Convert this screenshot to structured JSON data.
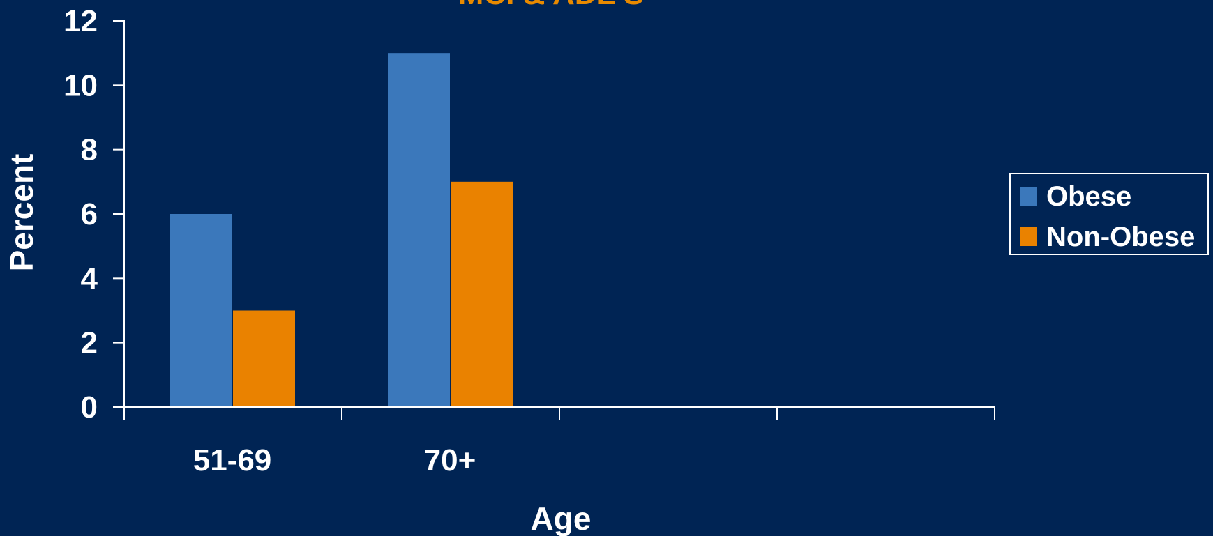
{
  "chart_data": {
    "type": "bar",
    "title": "MCI & ADL S",
    "xlabel": "Age",
    "ylabel": "Percent",
    "categories": [
      "51-69",
      "70+",
      "",
      ""
    ],
    "series": [
      {
        "name": "Obese",
        "values": [
          6,
          11,
          null,
          null
        ]
      },
      {
        "name": "Non-Obese",
        "values": [
          3,
          7,
          null,
          null
        ]
      }
    ],
    "ylim": [
      0,
      12
    ],
    "yticks": [
      "0",
      "2",
      "4",
      "6",
      "8",
      "10",
      "12"
    ],
    "grid": false,
    "legend_position": "right"
  },
  "colors": {
    "background": "#002454",
    "axis": "#ffffff",
    "title": "#e88a00",
    "series": [
      "#3b78bb",
      "#ea8200"
    ]
  }
}
